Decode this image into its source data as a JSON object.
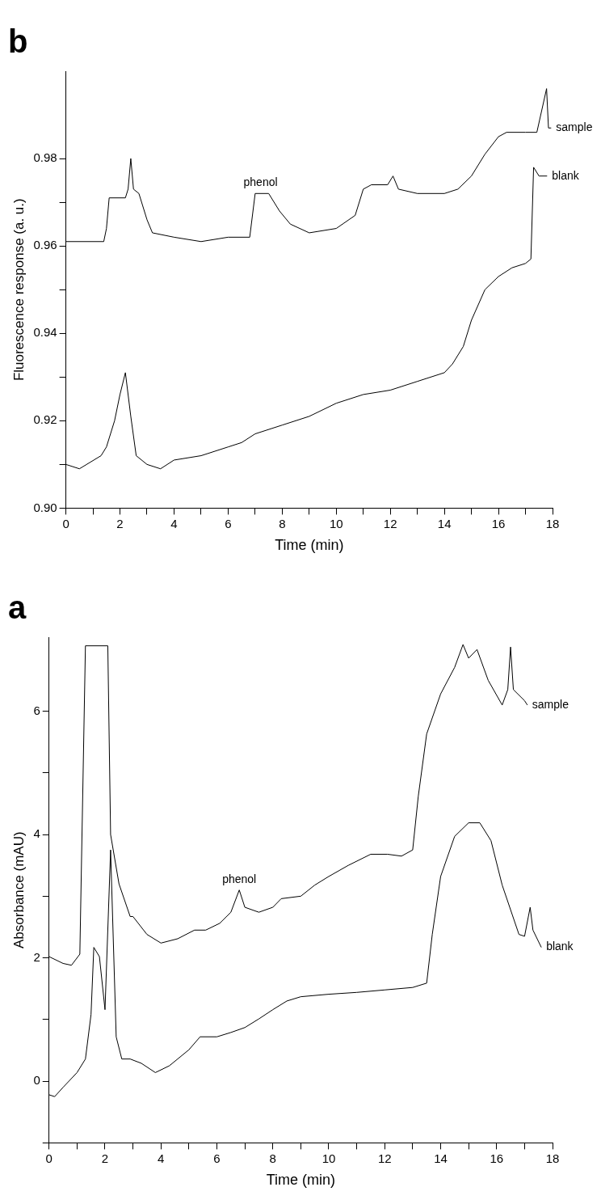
{
  "chart_data": [
    {
      "type": "line",
      "title": "b",
      "xlabel": "Time (min)",
      "ylabel": "Fluorescence response (a. u.)",
      "xlim": [
        0,
        18
      ],
      "xticks": [
        0,
        {
          "value": 1,
          "label": null
        },
        2,
        {
          "value": 3,
          "label": null
        },
        4,
        {
          "value": 5,
          "label": null
        },
        6,
        {
          "value": 7,
          "label": null
        },
        8,
        {
          "value": 9,
          "label": null
        },
        10,
        {
          "value": 11,
          "label": null
        },
        12,
        {
          "value": 13,
          "label": null
        },
        14,
        {
          "value": 15,
          "label": null
        },
        16,
        {
          "value": 17,
          "label": null
        },
        18
      ],
      "ylim": [
        0.9,
        1.0
      ],
      "yticks": [
        {
          "value": 0.9,
          "label": "0.90"
        },
        {
          "value": 0.91,
          "label": null
        },
        0.92,
        {
          "value": 0.93,
          "label": null
        },
        0.94,
        {
          "value": 0.95,
          "label": null
        },
        0.96,
        {
          "value": 0.97,
          "label": null
        },
        0.98
      ],
      "grid": false,
      "legend": false,
      "marker": "none",
      "line_style": "solid",
      "annotations": [
        {
          "text": "phenol",
          "x": 7.2,
          "y": 0.972
        }
      ],
      "series": [
        {
          "name": "sample",
          "color": "#000000",
          "x": [
            0,
            1.4,
            1.5,
            1.6,
            2.2,
            2.3,
            2.4,
            2.5,
            2.7,
            3.0,
            3.2,
            4,
            5,
            6,
            6.8,
            7.0,
            7.5,
            7.9,
            8.3,
            9,
            10,
            10.7,
            11.0,
            11.3,
            11.9,
            12.1,
            12.3,
            13,
            14,
            14.5,
            15,
            15.5,
            16,
            16.3,
            17,
            17.42,
            17.78,
            17.85,
            17.95
          ],
          "values": [
            0.961,
            0.961,
            0.964,
            0.971,
            0.971,
            0.973,
            0.98,
            0.973,
            0.972,
            0.966,
            0.963,
            0.962,
            0.961,
            0.962,
            0.962,
            0.972,
            0.972,
            0.968,
            0.965,
            0.963,
            0.964,
            0.967,
            0.973,
            0.974,
            0.974,
            0.976,
            0.973,
            0.972,
            0.972,
            0.973,
            0.976,
            0.981,
            0.985,
            0.986,
            0.986,
            0.986,
            0.996,
            0.987,
            0.987
          ]
        },
        {
          "name": "blank",
          "color": "#000000",
          "x": [
            0,
            0.5,
            1.3,
            1.5,
            1.8,
            2.0,
            2.2,
            2.4,
            2.6,
            3,
            3.5,
            4,
            5,
            6,
            6.5,
            7,
            8,
            9,
            10,
            11,
            12,
            13,
            14,
            14.3,
            14.7,
            15,
            15.5,
            16,
            16.5,
            17,
            17.2,
            17.3,
            17.5,
            17.8
          ],
          "values": [
            0.91,
            0.909,
            0.912,
            0.914,
            0.92,
            0.926,
            0.931,
            0.921,
            0.912,
            0.91,
            0.909,
            0.911,
            0.912,
            0.914,
            0.915,
            0.917,
            0.919,
            0.921,
            0.924,
            0.926,
            0.927,
            0.929,
            0.931,
            0.933,
            0.937,
            0.943,
            0.95,
            0.953,
            0.955,
            0.956,
            0.957,
            0.978,
            0.976,
            0.976
          ]
        }
      ]
    },
    {
      "type": "line",
      "title": "a",
      "xlabel": "Time (min)",
      "ylabel": "Absorbance (mAU)",
      "xlim": [
        0,
        18
      ],
      "xticks": [
        0,
        {
          "value": 1,
          "label": null
        },
        2,
        {
          "value": 3,
          "label": null
        },
        4,
        {
          "value": 5,
          "label": null
        },
        6,
        {
          "value": 7,
          "label": null
        },
        8,
        {
          "value": 9,
          "label": null
        },
        10,
        {
          "value": 11,
          "label": null
        },
        12,
        {
          "value": 13,
          "label": null
        },
        14,
        {
          "value": 15,
          "label": null
        },
        16,
        {
          "value": 17,
          "label": null
        },
        18
      ],
      "ylim": [
        -1,
        7.2
      ],
      "yticks": [
        {
          "value": -1,
          "label": null
        },
        0,
        {
          "value": 1,
          "label": null
        },
        2,
        {
          "value": 3,
          "label": null
        },
        4,
        {
          "value": 5,
          "label": null
        },
        6
      ],
      "grid": false,
      "legend": false,
      "marker": "none",
      "line_style": "solid",
      "annotations": [
        {
          "text": "phenol",
          "x": 6.8,
          "y": 3.1
        }
      ],
      "series": [
        {
          "name": "sample",
          "color": "#000000",
          "x": [
            0,
            0.5,
            0.8,
            1.1,
            1.3,
            2.1,
            2.2,
            2.5,
            2.9,
            3.0,
            3.5,
            4.0,
            4.6,
            5.2,
            5.6,
            6.1,
            6.5,
            6.8,
            7.0,
            7.5,
            8.0,
            8.3,
            9,
            9.5,
            10.0,
            10.7,
            11.5,
            12.1,
            12.6,
            13,
            13.2,
            13.5,
            14,
            14.5,
            14.8,
            15.0,
            15.3,
            15.7,
            16.2,
            16.4,
            16.5,
            16.6,
            17.0,
            17.1
          ],
          "values": [
            2.02,
            1.91,
            1.88,
            2.06,
            7.06,
            7.06,
            4.0,
            3.2,
            2.67,
            2.67,
            2.38,
            2.24,
            2.31,
            2.45,
            2.45,
            2.56,
            2.74,
            3.1,
            2.82,
            2.74,
            2.82,
            2.96,
            3.0,
            3.18,
            3.32,
            3.5,
            3.68,
            3.68,
            3.65,
            3.75,
            4.62,
            5.63,
            6.28,
            6.71,
            7.08,
            6.86,
            7.0,
            6.5,
            6.1,
            6.35,
            7.04,
            6.35,
            6.17,
            6.1
          ]
        },
        {
          "name": "blank",
          "color": "#000000",
          "x": [
            0,
            0.2,
            0.5,
            1.0,
            1.3,
            1.5,
            1.6,
            1.8,
            2.0,
            2.2,
            2.4,
            2.6,
            2.9,
            3.3,
            3.8,
            4.3,
            5.0,
            5.4,
            6,
            6.5,
            7,
            7.5,
            8,
            8.5,
            9,
            10,
            11,
            12,
            13,
            13.5,
            13.7,
            14,
            14.5,
            15,
            15.4,
            15.8,
            16.2,
            16.8,
            17.0,
            17.2,
            17.3,
            17.6
          ],
          "values": [
            -0.22,
            -0.25,
            -0.1,
            0.14,
            0.36,
            1.08,
            2.17,
            2.02,
            1.16,
            3.75,
            0.72,
            0.36,
            0.36,
            0.29,
            0.14,
            0.25,
            0.51,
            0.72,
            0.72,
            0.79,
            0.87,
            1.01,
            1.16,
            1.3,
            1.37,
            1.41,
            1.44,
            1.48,
            1.52,
            1.59,
            2.38,
            3.32,
            3.97,
            4.19,
            4.19,
            3.9,
            3.18,
            2.38,
            2.35,
            2.82,
            2.45,
            2.17
          ]
        }
      ]
    }
  ]
}
